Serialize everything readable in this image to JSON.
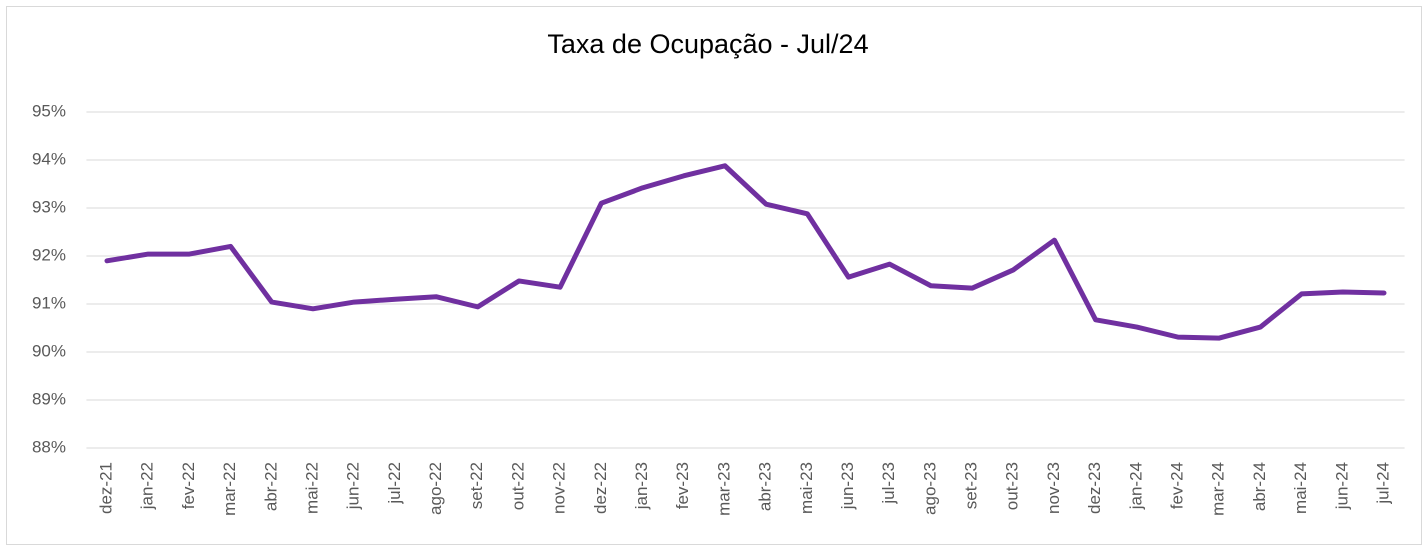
{
  "chart_data": {
    "type": "line",
    "title": "Taxa de Ocupação - Jul/24",
    "categories": [
      "dez-21",
      "jan-22",
      "fev-22",
      "mar-22",
      "abr-22",
      "mai-22",
      "jun-22",
      "jul-22",
      "ago-22",
      "set-22",
      "out-22",
      "nov-22",
      "dez-22",
      "jan-23",
      "fev-23",
      "mar-23",
      "abr-23",
      "mai-23",
      "jun-23",
      "jul-23",
      "ago-23",
      "set-23",
      "out-23",
      "nov-23",
      "dez-23",
      "jan-24",
      "fev-24",
      "mar-24",
      "abr-24",
      "mai-24",
      "jun-24",
      "jul-24"
    ],
    "series": [
      {
        "name": "Taxa de Ocupação",
        "color": "#7030a0",
        "values": [
          91.9,
          92.04,
          92.04,
          92.2,
          91.04,
          90.9,
          91.04,
          91.1,
          91.15,
          90.94,
          91.48,
          91.35,
          93.1,
          93.42,
          93.67,
          93.88,
          93.08,
          92.88,
          91.56,
          91.83,
          91.38,
          91.33,
          91.71,
          92.33,
          90.67,
          90.52,
          90.31,
          90.29,
          90.52,
          91.21,
          91.25,
          91.23
        ]
      }
    ],
    "ylim": [
      88,
      95
    ],
    "yticks": [
      {
        "value": 88,
        "label": "88%"
      },
      {
        "value": 89,
        "label": "89%"
      },
      {
        "value": 90,
        "label": "90%"
      },
      {
        "value": 91,
        "label": "91%"
      },
      {
        "value": 92,
        "label": "92%"
      },
      {
        "value": 93,
        "label": "93%"
      },
      {
        "value": 94,
        "label": "94%"
      },
      {
        "value": 95,
        "label": "95%"
      }
    ],
    "grid": true
  }
}
